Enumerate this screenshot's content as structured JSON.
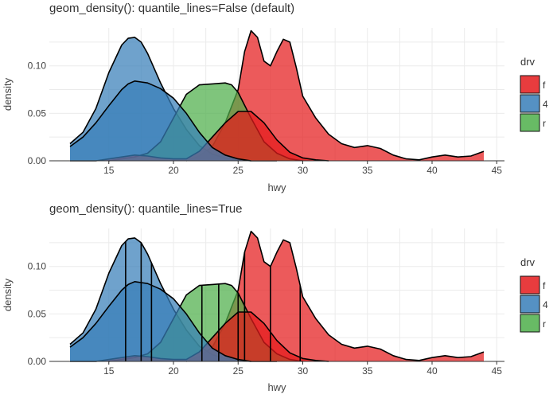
{
  "chart_data": [
    {
      "type": "area",
      "title": "geom_density(): quantile_lines=False (default)",
      "xlabel": "hwy",
      "ylabel": "density",
      "xlim": [
        10.4,
        45.6
      ],
      "ylim": [
        0.0,
        0.14
      ],
      "x_ticks": [
        15,
        20,
        25,
        30,
        35,
        40,
        45
      ],
      "y_ticks": [
        0.0,
        0.05,
        0.1
      ],
      "y_tick_labels": [
        "0.00",
        "0.05",
        "0.10"
      ],
      "grid": true,
      "quantile_lines": false,
      "series": [
        {
          "name": "f",
          "color": "#e41a1c",
          "x": [
            21,
            22,
            23,
            24,
            25,
            25.5,
            26,
            26.5,
            27,
            27.5,
            28,
            28.5,
            29,
            29.5,
            30,
            31,
            32,
            33,
            34,
            35,
            36,
            37,
            38,
            39,
            40,
            41,
            42,
            43,
            44
          ],
          "y": [
            0.0,
            0.005,
            0.015,
            0.04,
            0.075,
            0.115,
            0.137,
            0.13,
            0.105,
            0.1,
            0.115,
            0.128,
            0.125,
            0.098,
            0.068,
            0.045,
            0.028,
            0.018,
            0.014,
            0.016,
            0.013,
            0.006,
            0.002,
            0.001,
            0.004,
            0.006,
            0.004,
            0.005,
            0.01
          ]
        },
        {
          "name": "4",
          "color": "#377eb8",
          "x": [
            12,
            13,
            14,
            15,
            16,
            16.5,
            17,
            17.5,
            18,
            19,
            20,
            21,
            22,
            23,
            24,
            25,
            26,
            27,
            28
          ],
          "y": [
            0.018,
            0.03,
            0.055,
            0.093,
            0.122,
            0.129,
            0.13,
            0.125,
            0.113,
            0.082,
            0.055,
            0.033,
            0.016,
            0.007,
            0.003,
            0.001,
            0.0,
            0.0,
            0.0
          ]
        },
        {
          "name": "r",
          "color": "#4daf4a",
          "x": [
            15,
            16,
            17,
            18,
            19,
            20,
            21,
            22,
            23,
            24,
            24.5,
            25,
            26,
            27,
            28,
            29,
            30
          ],
          "y": [
            0.0,
            0.002,
            0.004,
            0.008,
            0.02,
            0.045,
            0.07,
            0.08,
            0.081,
            0.082,
            0.08,
            0.072,
            0.045,
            0.02,
            0.008,
            0.002,
            0.0
          ]
        },
        {
          "name": "f",
          "color": "#e41a1c",
          "x": [
            12,
            14,
            16,
            17,
            18,
            19,
            20,
            21,
            22,
            23,
            24,
            25,
            26,
            27,
            28,
            29,
            30,
            31,
            32
          ],
          "y": [
            0.0,
            0.0,
            0.004,
            0.006,
            0.005,
            0.003,
            0.002,
            0.002,
            0.01,
            0.025,
            0.04,
            0.052,
            0.052,
            0.04,
            0.022,
            0.009,
            0.003,
            0.001,
            0.0
          ]
        },
        {
          "name": "4",
          "color": "#377eb8",
          "x": [
            12,
            13,
            14,
            15,
            16,
            16.5,
            17,
            17.5,
            18,
            19,
            20,
            21,
            22,
            23,
            24,
            25,
            26
          ],
          "y": [
            0.015,
            0.025,
            0.04,
            0.058,
            0.075,
            0.081,
            0.084,
            0.083,
            0.082,
            0.076,
            0.066,
            0.05,
            0.03,
            0.014,
            0.006,
            0.002,
            0.0
          ]
        }
      ]
    },
    {
      "type": "area",
      "title": "geom_density(): quantile_lines=True",
      "xlabel": "hwy",
      "ylabel": "density",
      "xlim": [
        10.4,
        45.6
      ],
      "ylim": [
        0.0,
        0.14
      ],
      "x_ticks": [
        15,
        20,
        25,
        30,
        35,
        40,
        45
      ],
      "y_ticks": [
        0.0,
        0.05,
        0.1
      ],
      "y_tick_labels": [
        "0.00",
        "0.05",
        "0.10"
      ],
      "grid": true,
      "quantile_lines": true,
      "quantiles": {
        "f": [
          25.5,
          27.5,
          29.8
        ],
        "4": [
          16.3,
          17.5,
          18.3
        ],
        "r": [
          22.2,
          23.5,
          25
        ]
      },
      "series": [
        {
          "name": "f",
          "color": "#e41a1c",
          "x": [
            21,
            22,
            23,
            24,
            25,
            25.5,
            26,
            26.5,
            27,
            27.5,
            28,
            28.5,
            29,
            29.5,
            30,
            31,
            32,
            33,
            34,
            35,
            36,
            37,
            38,
            39,
            40,
            41,
            42,
            43,
            44
          ],
          "y": [
            0.0,
            0.005,
            0.015,
            0.04,
            0.075,
            0.115,
            0.137,
            0.13,
            0.105,
            0.1,
            0.115,
            0.128,
            0.125,
            0.098,
            0.068,
            0.045,
            0.028,
            0.018,
            0.014,
            0.016,
            0.013,
            0.006,
            0.002,
            0.001,
            0.004,
            0.006,
            0.004,
            0.005,
            0.01
          ]
        },
        {
          "name": "4",
          "color": "#377eb8",
          "x": [
            12,
            13,
            14,
            15,
            16,
            16.5,
            17,
            17.5,
            18,
            19,
            20,
            21,
            22,
            23,
            24,
            25,
            26,
            27,
            28
          ],
          "y": [
            0.018,
            0.03,
            0.055,
            0.093,
            0.122,
            0.129,
            0.13,
            0.125,
            0.113,
            0.082,
            0.055,
            0.033,
            0.016,
            0.007,
            0.003,
            0.001,
            0.0,
            0.0,
            0.0
          ]
        },
        {
          "name": "r",
          "color": "#4daf4a",
          "x": [
            15,
            16,
            17,
            18,
            19,
            20,
            21,
            22,
            23,
            24,
            24.5,
            25,
            26,
            27,
            28,
            29,
            30
          ],
          "y": [
            0.0,
            0.002,
            0.004,
            0.008,
            0.02,
            0.045,
            0.07,
            0.08,
            0.081,
            0.082,
            0.08,
            0.072,
            0.045,
            0.02,
            0.008,
            0.002,
            0.0
          ]
        },
        {
          "name": "f",
          "color": "#e41a1c",
          "x": [
            12,
            14,
            16,
            17,
            18,
            19,
            20,
            21,
            22,
            23,
            24,
            25,
            26,
            27,
            28,
            29,
            30,
            31,
            32
          ],
          "y": [
            0.0,
            0.0,
            0.004,
            0.006,
            0.005,
            0.003,
            0.002,
            0.002,
            0.01,
            0.025,
            0.04,
            0.052,
            0.052,
            0.04,
            0.022,
            0.009,
            0.003,
            0.001,
            0.0
          ]
        },
        {
          "name": "4",
          "color": "#377eb8",
          "x": [
            12,
            13,
            14,
            15,
            16,
            16.5,
            17,
            17.5,
            18,
            19,
            20,
            21,
            22,
            23,
            24,
            25,
            26
          ],
          "y": [
            0.015,
            0.025,
            0.04,
            0.058,
            0.075,
            0.081,
            0.084,
            0.083,
            0.082,
            0.076,
            0.066,
            0.05,
            0.03,
            0.014,
            0.006,
            0.002,
            0.0
          ]
        }
      ]
    }
  ],
  "legend": {
    "title": "drv",
    "items": [
      {
        "label": "f",
        "color": "#e41a1c"
      },
      {
        "label": "4",
        "color": "#377eb8"
      },
      {
        "label": "r",
        "color": "#4daf4a"
      }
    ]
  }
}
